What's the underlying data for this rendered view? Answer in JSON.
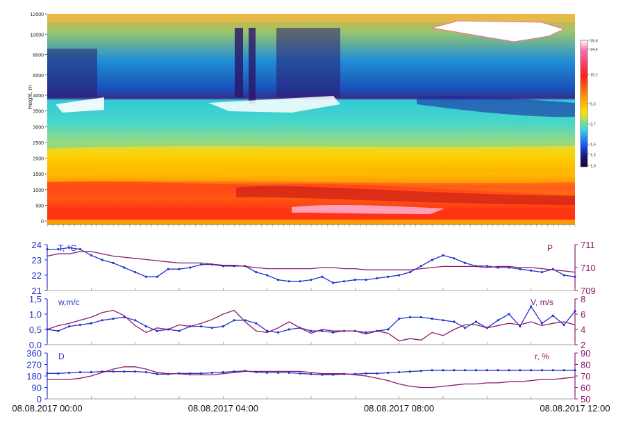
{
  "chart_data": [
    {
      "type": "heatmap",
      "ylabel": "Height, m",
      "ylim": [
        0,
        12000
      ],
      "y_ticks": [
        "0",
        "500",
        "1000",
        "1500",
        "2000",
        "2500",
        "3000",
        "3500",
        "4000",
        "6000",
        "8000",
        "10000",
        "12000"
      ],
      "y_tick_values": [
        0,
        500,
        1000,
        1500,
        2000,
        2500,
        3000,
        3500,
        4000,
        6000,
        8000,
        10000,
        12000
      ],
      "colorbar": {
        "labels": [
          "39,8",
          "24,4",
          "15,2",
          "5,3",
          "2,7",
          "1,6",
          "1,3",
          "1,0"
        ],
        "colors": [
          "#ffffff",
          "#ff69b4",
          "#ff1a1a",
          "#ffe000",
          "#33dddd",
          "#1a5cff",
          "#101a88",
          "#2a0033"
        ]
      }
    },
    {
      "type": "line",
      "left_label": "T, °C",
      "right_label": "P",
      "left_ylim": [
        21,
        24
      ],
      "left_ticks": [
        "21",
        "22",
        "23",
        "24"
      ],
      "right_ylim": [
        709,
        711
      ],
      "right_ticks": [
        "709",
        "710",
        "711"
      ],
      "x_hours": [
        0,
        0.25,
        0.5,
        0.75,
        1,
        1.25,
        1.5,
        1.75,
        2,
        2.25,
        2.5,
        2.75,
        3,
        3.25,
        3.5,
        3.75,
        4,
        4.25,
        4.5,
        4.75,
        5,
        5.25,
        5.5,
        5.75,
        6,
        6.25,
        6.5,
        6.75,
        7,
        7.25,
        7.5,
        7.75,
        8,
        8.25,
        8.5,
        8.75,
        9,
        9.25,
        9.5,
        9.75,
        10,
        10.25,
        10.5,
        10.75,
        11,
        11.25,
        11.5,
        11.75,
        12
      ],
      "series": [
        {
          "name": "T, °C",
          "color": "#2233cc",
          "axis": "left",
          "values": [
            23.7,
            23.7,
            23.8,
            23.7,
            23.3,
            23.0,
            22.8,
            22.5,
            22.2,
            21.9,
            21.9,
            22.4,
            22.4,
            22.5,
            22.7,
            22.7,
            22.6,
            22.6,
            22.6,
            22.2,
            22.0,
            21.7,
            21.6,
            21.6,
            21.7,
            21.9,
            21.5,
            21.6,
            21.7,
            21.7,
            21.8,
            21.9,
            22.0,
            22.2,
            22.6,
            23.0,
            23.3,
            23.1,
            22.8,
            22.6,
            22.6,
            22.5,
            22.5,
            22.4,
            22.3,
            22.2,
            22.4,
            22.0,
            21.9
          ]
        },
        {
          "name": "P",
          "color": "#8a1a6a",
          "axis": "right",
          "values": [
            710.5,
            710.6,
            710.6,
            710.7,
            710.7,
            710.6,
            710.5,
            710.45,
            710.4,
            710.35,
            710.3,
            710.25,
            710.2,
            710.2,
            710.2,
            710.15,
            710.1,
            710.1,
            710.05,
            710.0,
            709.95,
            709.95,
            709.95,
            709.95,
            709.95,
            710.0,
            710.0,
            709.95,
            709.95,
            709.9,
            709.9,
            709.9,
            709.9,
            709.9,
            709.95,
            710.0,
            710.05,
            710.05,
            710.05,
            710.05,
            710.0,
            710.05,
            710.05,
            710.0,
            710.0,
            709.95,
            709.9,
            709.85,
            709.8
          ]
        }
      ]
    },
    {
      "type": "line",
      "left_label": "w,m/c",
      "right_label": "V, m/s",
      "left_ylim": [
        0,
        1.5
      ],
      "left_ticks": [
        "0,0",
        "0,5",
        "1,0",
        "1,5"
      ],
      "right_ylim": [
        2,
        8
      ],
      "right_ticks": [
        "2",
        "4",
        "6",
        "8"
      ],
      "x_hours": [
        0,
        0.25,
        0.5,
        0.75,
        1,
        1.25,
        1.5,
        1.75,
        2,
        2.25,
        2.5,
        2.75,
        3,
        3.25,
        3.5,
        3.75,
        4,
        4.25,
        4.5,
        4.75,
        5,
        5.25,
        5.5,
        5.75,
        6,
        6.25,
        6.5,
        6.75,
        7,
        7.25,
        7.5,
        7.75,
        8,
        8.25,
        8.5,
        8.75,
        9,
        9.25,
        9.5,
        9.75,
        10,
        10.25,
        10.5,
        10.75,
        11,
        11.25,
        11.5,
        11.75,
        12
      ],
      "series": [
        {
          "name": "w, m/c",
          "color": "#2233cc",
          "axis": "left",
          "values": [
            0.5,
            0.45,
            0.6,
            0.65,
            0.7,
            0.8,
            0.85,
            0.9,
            0.8,
            0.6,
            0.45,
            0.5,
            0.45,
            0.6,
            0.6,
            0.55,
            0.6,
            0.8,
            0.8,
            0.7,
            0.45,
            0.4,
            0.5,
            0.55,
            0.45,
            0.45,
            0.4,
            0.45,
            0.45,
            0.4,
            0.45,
            0.5,
            0.85,
            0.9,
            0.9,
            0.85,
            0.8,
            0.75,
            0.55,
            0.75,
            0.55,
            0.8,
            1.0,
            0.6,
            1.25,
            0.7,
            0.95,
            0.65,
            1.1
          ]
        },
        {
          "name": "V, m/s",
          "color": "#8a1a6a",
          "axis": "right",
          "values": [
            4.0,
            4.5,
            4.8,
            5.2,
            5.6,
            6.2,
            6.5,
            5.8,
            4.5,
            3.6,
            4.2,
            4.0,
            4.6,
            4.4,
            4.8,
            5.3,
            6.0,
            6.5,
            5.0,
            3.8,
            3.6,
            4.2,
            5.0,
            4.2,
            3.5,
            4.0,
            3.8,
            3.8,
            3.8,
            3.4,
            3.8,
            3.5,
            2.5,
            2.8,
            2.6,
            3.6,
            3.2,
            4.0,
            4.6,
            4.6,
            4.2,
            4.5,
            4.8,
            4.6,
            5.0,
            4.5,
            4.8,
            5.0,
            4.6
          ]
        }
      ]
    },
    {
      "type": "line",
      "left_label": "D",
      "right_label": "r, %",
      "left_ylim": [
        0,
        360
      ],
      "left_ticks": [
        "0",
        "90",
        "180",
        "270",
        "360"
      ],
      "right_ylim": [
        50,
        90
      ],
      "right_ticks": [
        "50",
        "60",
        "70",
        "80",
        "90"
      ],
      "x_hours": [
        0,
        0.25,
        0.5,
        0.75,
        1,
        1.25,
        1.5,
        1.75,
        2,
        2.25,
        2.5,
        2.75,
        3,
        3.25,
        3.5,
        3.75,
        4,
        4.25,
        4.5,
        4.75,
        5,
        5.25,
        5.5,
        5.75,
        6,
        6.25,
        6.5,
        6.75,
        7,
        7.25,
        7.5,
        7.75,
        8,
        8.25,
        8.5,
        8.75,
        9,
        9.25,
        9.5,
        9.75,
        10,
        10.25,
        10.5,
        10.75,
        11,
        11.25,
        11.5,
        11.75,
        12
      ],
      "series": [
        {
          "name": "D",
          "color": "#2233cc",
          "axis": "left",
          "values": [
            200,
            200,
            205,
            210,
            210,
            215,
            215,
            215,
            215,
            210,
            195,
            195,
            200,
            200,
            200,
            205,
            210,
            215,
            220,
            210,
            205,
            205,
            205,
            200,
            195,
            190,
            190,
            195,
            195,
            200,
            200,
            205,
            210,
            215,
            220,
            225,
            225,
            225,
            225,
            225,
            225,
            225,
            225,
            225,
            225,
            225,
            225,
            225,
            225
          ]
        },
        {
          "name": "r, %",
          "color": "#8a1a6a",
          "axis": "right",
          "values": [
            67,
            67,
            67,
            68,
            70,
            73,
            76,
            78,
            78,
            76,
            73,
            72,
            72,
            71,
            71,
            71,
            72,
            73,
            74,
            74,
            74,
            74,
            74,
            74,
            73,
            72,
            72,
            72,
            71,
            70,
            68,
            66,
            63,
            61,
            60,
            60,
            61,
            62,
            63,
            63,
            64,
            64,
            65,
            65,
            66,
            67,
            67,
            68,
            69
          ]
        }
      ]
    }
  ],
  "x_axis": {
    "labels": [
      "08.08.2017 00:00",
      "08.08.2017 04:00",
      "08.08.2017 08:00",
      "08.08.2017 12:00"
    ],
    "hours": [
      0,
      4,
      8,
      12
    ]
  }
}
